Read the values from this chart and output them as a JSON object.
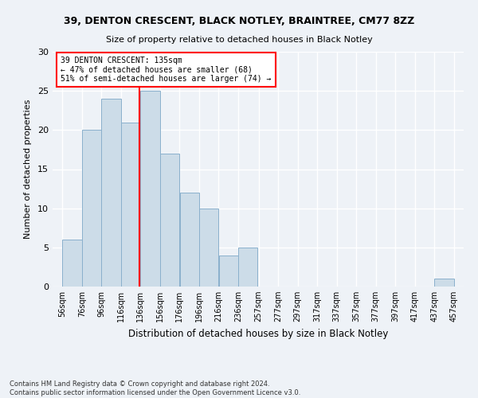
{
  "title_line1": "39, DENTON CRESCENT, BLACK NOTLEY, BRAINTREE, CM77 8ZZ",
  "title_line2": "Size of property relative to detached houses in Black Notley",
  "xlabel": "Distribution of detached houses by size in Black Notley",
  "ylabel": "Number of detached properties",
  "bins": [
    56,
    76,
    96,
    116,
    136,
    156,
    176,
    196,
    216,
    236,
    257,
    277,
    297,
    317,
    337,
    357,
    377,
    397,
    417,
    437,
    457
  ],
  "counts": [
    6,
    20,
    24,
    21,
    25,
    17,
    12,
    10,
    4,
    5,
    0,
    0,
    0,
    0,
    0,
    0,
    0,
    0,
    0,
    1
  ],
  "bar_color": "#ccdce8",
  "bar_edge_color": "#8ab0cc",
  "property_size": 135,
  "annotation_text": "39 DENTON CRESCENT: 135sqm\n← 47% of detached houses are smaller (68)\n51% of semi-detached houses are larger (74) →",
  "annotation_box_color": "white",
  "annotation_box_edge_color": "red",
  "vline_color": "red",
  "ylim": [
    0,
    30
  ],
  "yticks": [
    0,
    5,
    10,
    15,
    20,
    25,
    30
  ],
  "bg_color": "#eef2f7",
  "grid_color": "white",
  "footnote": "Contains HM Land Registry data © Crown copyright and database right 2024.\nContains public sector information licensed under the Open Government Licence v3.0."
}
